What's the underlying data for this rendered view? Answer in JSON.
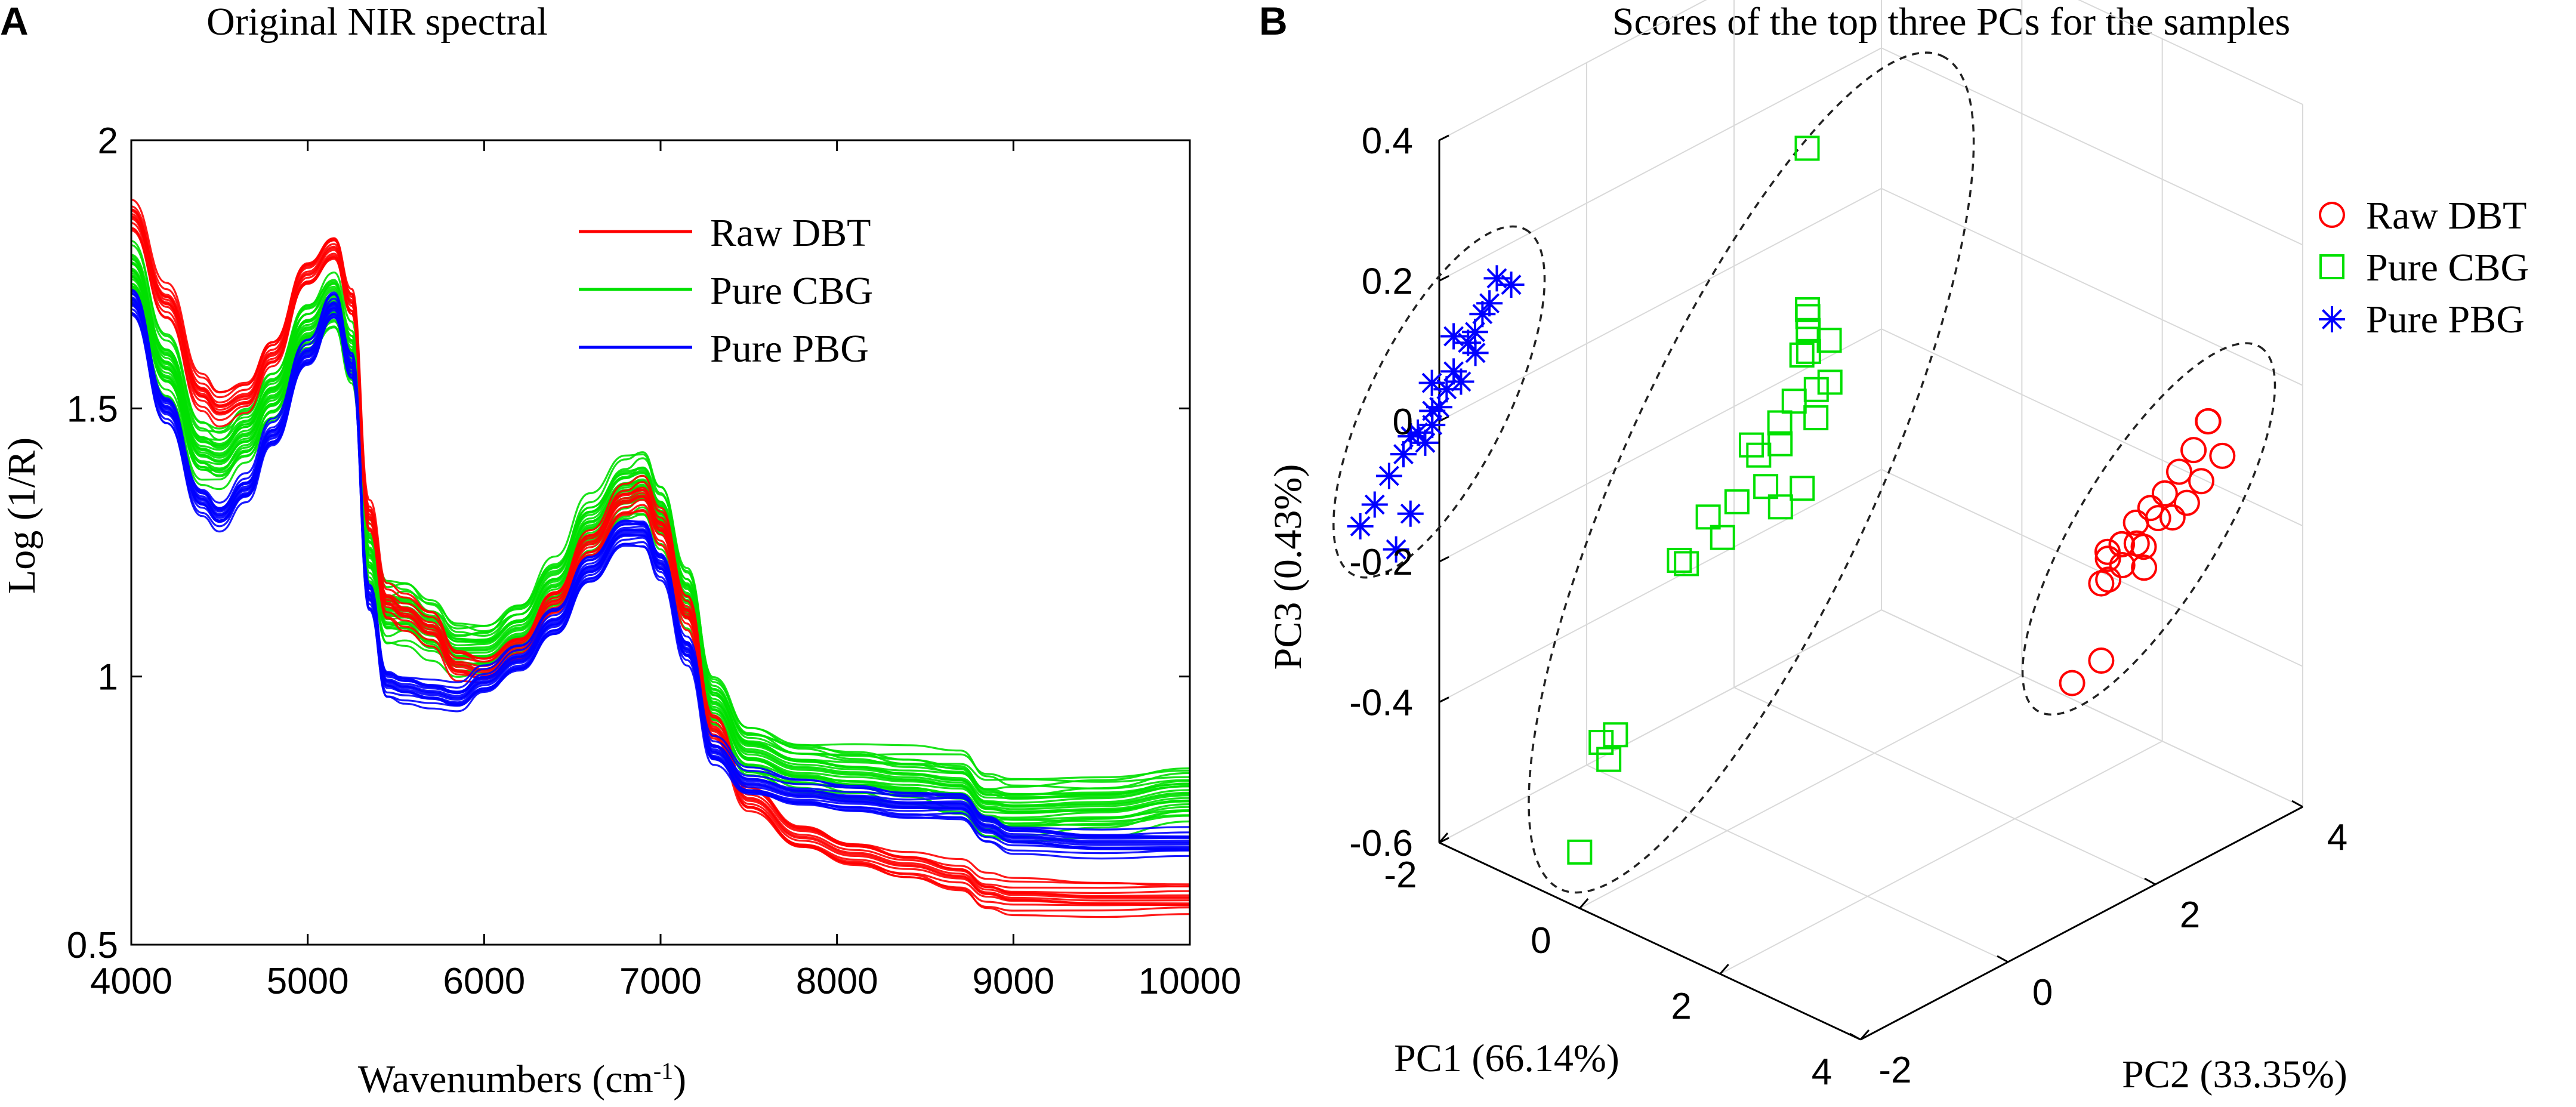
{
  "panels": {
    "a": {
      "letter": "A"
    },
    "b": {
      "letter": "B"
    }
  },
  "chart_data": [
    {
      "type": "line",
      "title": "Original NIR spectral",
      "xlabel": "Wavenumbers (cm",
      "xlabel_superscript": "-1",
      "xlabel_close": ")",
      "ylabel": "Log (1/R)",
      "xlim": [
        4000,
        10000
      ],
      "ylim": [
        0.5,
        2.0
      ],
      "xticks": [
        4000,
        5000,
        6000,
        7000,
        8000,
        9000,
        10000
      ],
      "yticks": [
        0.5,
        1,
        1.5,
        2
      ],
      "ytick_labels": [
        "0.5",
        "1",
        "1.5",
        "2"
      ],
      "legend": "top-right",
      "x": [
        4000,
        4200,
        4400,
        4500,
        4650,
        4800,
        5000,
        5150,
        5250,
        5350,
        5450,
        5550,
        5700,
        5850,
        6000,
        6200,
        6400,
        6600,
        6800,
        6900,
        7000,
        7150,
        7300,
        7500,
        7800,
        8100,
        8400,
        8700,
        8850,
        9000,
        9500,
        10000
      ],
      "series": [
        {
          "name": "Raw DBT",
          "color": "#ff0000",
          "curves": 14,
          "spread": 0.025,
          "values": [
            1.86,
            1.7,
            1.53,
            1.5,
            1.52,
            1.6,
            1.75,
            1.8,
            1.7,
            1.3,
            1.14,
            1.12,
            1.09,
            1.02,
            1.01,
            1.05,
            1.14,
            1.25,
            1.33,
            1.34,
            1.28,
            1.12,
            0.9,
            0.77,
            0.7,
            0.67,
            0.65,
            0.63,
            0.6,
            0.59,
            0.585,
            0.585
          ]
        },
        {
          "name": "Pure CBG",
          "color": "#00e000",
          "curves": 28,
          "spread": 0.045,
          "values": [
            1.75,
            1.58,
            1.42,
            1.41,
            1.45,
            1.52,
            1.65,
            1.7,
            1.6,
            1.23,
            1.12,
            1.12,
            1.09,
            1.05,
            1.05,
            1.09,
            1.17,
            1.28,
            1.35,
            1.36,
            1.3,
            1.15,
            0.95,
            0.86,
            0.83,
            0.82,
            0.81,
            0.8,
            0.76,
            0.755,
            0.76,
            0.78
          ]
        },
        {
          "name": "Pure PBG",
          "color": "#0000ff",
          "curves": 18,
          "spread": 0.022,
          "values": [
            1.7,
            1.5,
            1.33,
            1.3,
            1.35,
            1.45,
            1.6,
            1.69,
            1.58,
            1.15,
            0.99,
            0.98,
            0.97,
            0.96,
            0.99,
            1.03,
            1.1,
            1.2,
            1.27,
            1.27,
            1.21,
            1.05,
            0.86,
            0.8,
            0.78,
            0.77,
            0.76,
            0.76,
            0.72,
            0.7,
            0.69,
            0.69
          ]
        }
      ]
    },
    {
      "type": "scatter",
      "title": "Scores of the top three PCs for the samples",
      "xlabel": "PC1 (66.14%)",
      "ylabel": "PC2 (33.35%)",
      "zlabel": "PC3 (0.43%)",
      "xlim": [
        -2,
        4
      ],
      "ylim": [
        -2,
        4
      ],
      "zlim": [
        -0.6,
        0.4
      ],
      "xticks": [
        -2,
        0,
        2,
        4
      ],
      "yticks": [
        -2,
        0,
        2,
        4
      ],
      "zticks": [
        -0.6,
        -0.4,
        -0.2,
        0,
        0.2,
        0.4
      ],
      "zticks_labeled": [
        "-0.6",
        "-0.4",
        "-0.2",
        "0",
        "0.2",
        "0.4"
      ],
      "grid": true,
      "legend": "top-right",
      "series": [
        {
          "name": "Raw DBT",
          "marker": "circle",
          "color": "#ff0000",
          "points": [
            [
              2.6,
              2.6,
              -0.27
            ],
            [
              2.7,
              2.6,
              -0.26
            ],
            [
              2.8,
              2.5,
              -0.22
            ],
            [
              2.9,
              2.4,
              -0.2
            ],
            [
              2.9,
              2.6,
              -0.23
            ],
            [
              3.0,
              2.5,
              -0.19
            ],
            [
              3.1,
              2.4,
              -0.18
            ],
            [
              3.0,
              2.7,
              -0.2
            ],
            [
              3.2,
              2.5,
              -0.15
            ],
            [
              3.3,
              2.6,
              -0.13
            ],
            [
              3.2,
              2.8,
              -0.16
            ],
            [
              3.4,
              2.7,
              -0.11
            ],
            [
              3.5,
              2.8,
              -0.08
            ],
            [
              3.6,
              2.9,
              -0.05
            ],
            [
              3.7,
              3.0,
              -0.01
            ],
            [
              3.6,
              3.1,
              -0.02
            ],
            [
              3.3,
              2.9,
              -0.16
            ],
            [
              3.4,
              3.0,
              -0.14
            ],
            [
              3.5,
              3.1,
              -0.11
            ],
            [
              3.1,
              2.7,
              -0.2
            ],
            [
              3.0,
              2.8,
              -0.24
            ],
            [
              2.5,
              2.3,
              -0.4
            ],
            [
              2.6,
              2.6,
              -0.38
            ],
            [
              3.8,
              3.1,
              -0.06
            ]
          ]
        },
        {
          "name": "Pure CBG",
          "marker": "square",
          "color": "#00e000",
          "points": [
            [
              2.4,
              -1.2,
              0.55
            ],
            [
              2.3,
              -1.1,
              0.31
            ],
            [
              2.2,
              -1.0,
              0.29
            ],
            [
              2.4,
              -0.9,
              0.26
            ],
            [
              2.1,
              -0.9,
              0.26
            ],
            [
              2.0,
              -0.8,
              0.22
            ],
            [
              2.2,
              -0.7,
              0.18
            ],
            [
              1.9,
              -0.9,
              0.15
            ],
            [
              2.0,
              -0.7,
              0.12
            ],
            [
              1.8,
              -1.0,
              0.12
            ],
            [
              1.7,
              -0.9,
              0.08
            ],
            [
              1.9,
              -0.6,
              0.15
            ],
            [
              1.6,
              -1.0,
              0.02
            ],
            [
              1.5,
              -1.0,
              0.06
            ],
            [
              1.4,
              -1.2,
              0.0
            ],
            [
              1.3,
              -1.3,
              -0.05
            ],
            [
              1.6,
              -0.8,
              -0.02
            ],
            [
              1.7,
              -0.6,
              0.0
            ],
            [
              1.2,
              -1.4,
              -0.02
            ],
            [
              1.1,
              -1.6,
              -0.08
            ],
            [
              1.0,
              -1.6,
              -0.08
            ],
            [
              0.3,
              -1.8,
              -0.35
            ],
            [
              0.2,
              -1.9,
              -0.36
            ],
            [
              0.1,
              -1.7,
              -0.4
            ],
            [
              0.0,
              -2.0,
              -0.52
            ],
            [
              1.8,
              -0.7,
              0.2
            ],
            [
              1.5,
              -1.1,
              0.08
            ]
          ]
        },
        {
          "name": "Pure PBG",
          "marker": "asterisk",
          "color": "#0000ff",
          "points": [
            [
              -1.6,
              -1.6,
              0.2
            ],
            [
              -1.5,
              -1.5,
              0.19
            ],
            [
              -1.6,
              -1.7,
              0.17
            ],
            [
              -1.7,
              -1.7,
              0.15
            ],
            [
              -1.7,
              -1.8,
              0.13
            ],
            [
              -1.8,
              -1.8,
              0.11
            ],
            [
              -1.8,
              -1.7,
              0.09
            ],
            [
              -1.9,
              -1.9,
              0.07
            ],
            [
              -1.9,
              -1.8,
              0.05
            ],
            [
              -2.0,
              -1.9,
              0.04
            ],
            [
              -2.0,
              -2.0,
              0.02
            ],
            [
              -2.1,
              -2.0,
              0.01
            ],
            [
              -2.1,
              -2.0,
              -0.01
            ],
            [
              -2.2,
              -2.1,
              -0.02
            ],
            [
              -2.2,
              -2.0,
              -0.04
            ],
            [
              -2.3,
              -2.2,
              -0.05
            ],
            [
              -2.4,
              -2.3,
              -0.08
            ],
            [
              -2.5,
              -2.4,
              -0.12
            ],
            [
              -2.6,
              -2.5,
              -0.15
            ],
            [
              -2.2,
              -2.2,
              -0.13
            ],
            [
              -2.3,
              -2.3,
              -0.18
            ],
            [
              -1.9,
              -1.9,
              0.12
            ],
            [
              -2.0,
              -2.1,
              0.06
            ],
            [
              -2.3,
              -2.1,
              -0.03
            ]
          ]
        }
      ]
    }
  ]
}
